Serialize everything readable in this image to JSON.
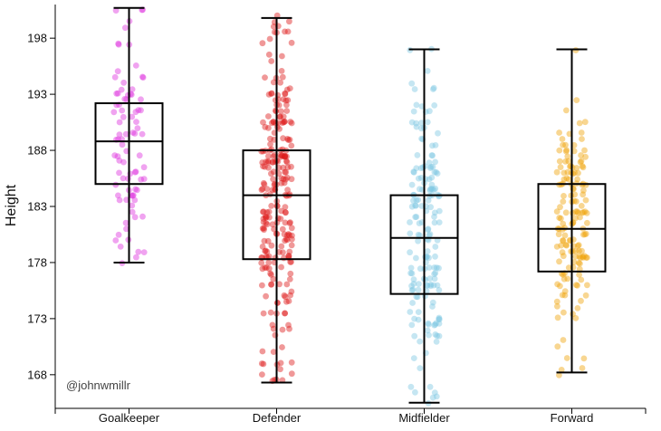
{
  "chart_data": {
    "type": "box",
    "title": "",
    "ylabel": "Height",
    "xlabel": "",
    "ylim": [
      165,
      201
    ],
    "yticks": [
      168,
      173,
      178,
      183,
      188,
      193,
      198
    ],
    "credit": "@johnwmillr",
    "jitter_points_shown": true,
    "point_opacity": 0.45,
    "categories": [
      "Goalkeeper",
      "Defender",
      "Midfielder",
      "Forward"
    ],
    "series": [
      {
        "name": "Goalkeeper",
        "color": "#dd33dd",
        "min": 178,
        "q1": 185,
        "median": 188.8,
        "q3": 192.2,
        "max": 200.7,
        "n_points": 85,
        "seed": 11
      },
      {
        "name": "Defender",
        "color": "#dd1a1a",
        "min": 167.3,
        "q1": 178.3,
        "median": 184,
        "q3": 188,
        "max": 199.8,
        "n_points": 260,
        "seed": 23
      },
      {
        "name": "Midfielder",
        "color": "#7ec8e3",
        "min": 165.5,
        "q1": 175.2,
        "median": 180.2,
        "q3": 184,
        "max": 197,
        "n_points": 175,
        "seed": 37
      },
      {
        "name": "Forward",
        "color": "#f0a30a",
        "min": 168.2,
        "q1": 177.2,
        "median": 181,
        "q3": 185,
        "max": 197,
        "n_points": 160,
        "seed": 53
      }
    ]
  }
}
